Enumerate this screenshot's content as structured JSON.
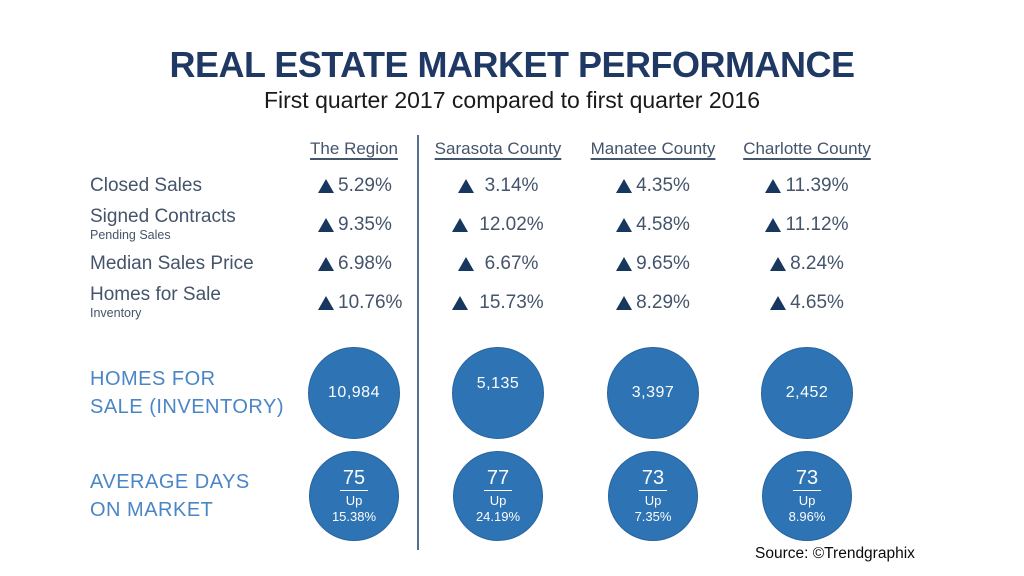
{
  "title": "REAL ESTATE MARKET PERFORMANCE",
  "subtitle": "First quarter 2017 compared to first quarter 2016",
  "table": {
    "columns": [
      "The Region",
      "Sarasota County",
      "Manatee County",
      "Charlotte County"
    ],
    "rows": [
      {
        "label": "Closed Sales",
        "sublabel": "",
        "values": [
          "5.29%",
          "3.14%",
          "4.35%",
          "11.39%"
        ]
      },
      {
        "label": "Signed Contracts",
        "sublabel": "Pending Sales",
        "values": [
          "9.35%",
          "12.02%",
          "4.58%",
          "11.12%"
        ]
      },
      {
        "label": "Median Sales Price",
        "sublabel": "",
        "values": [
          "6.98%",
          "6.67%",
          "9.65%",
          "8.24%"
        ]
      },
      {
        "label": "Homes for Sale",
        "sublabel": "Inventory",
        "values": [
          "10.76%",
          "15.73%",
          "8.29%",
          "4.65%"
        ]
      }
    ]
  },
  "inventory": {
    "label_lines": [
      "HOMES FOR",
      "SALE (INVENTORY)"
    ],
    "values": [
      "10,984",
      "5,135",
      "3,397",
      "2,452"
    ]
  },
  "days_on_market": {
    "label_lines": [
      "AVERAGE DAYS",
      "ON MARKET"
    ],
    "circles": [
      {
        "value": "75",
        "direction": "Up",
        "change": "15.38%"
      },
      {
        "value": "77",
        "direction": "Up",
        "change": "24.19%"
      },
      {
        "value": "73",
        "direction": "Up",
        "change": "7.35%"
      },
      {
        "value": "73",
        "direction": "Up",
        "change": "8.96%"
      }
    ]
  },
  "source": "Source: ©Trendgraphix",
  "colors": {
    "title_navy": "#1f3864",
    "slate_text": "#44546a",
    "triangle_navy": "#17375e",
    "circle_blue": "#2e74b5",
    "light_blue_label": "#4a86c5",
    "divider": "#54708e"
  },
  "chart_data": {
    "type": "table",
    "title": "REAL ESTATE MARKET PERFORMANCE",
    "subtitle": "First quarter 2017 compared to first quarter 2016",
    "columns": [
      "The Region",
      "Sarasota County",
      "Manatee County",
      "Charlotte County"
    ],
    "rows": [
      {
        "metric": "Closed Sales",
        "note": "",
        "direction": "up",
        "values_pct": [
          5.29,
          3.14,
          4.35,
          11.39
        ]
      },
      {
        "metric": "Signed Contracts",
        "note": "Pending Sales",
        "direction": "up",
        "values_pct": [
          9.35,
          12.02,
          4.58,
          11.12
        ]
      },
      {
        "metric": "Median Sales Price",
        "note": "",
        "direction": "up",
        "values_pct": [
          6.98,
          6.67,
          9.65,
          8.24
        ]
      },
      {
        "metric": "Homes for Sale",
        "note": "Inventory",
        "direction": "up",
        "values_pct": [
          10.76,
          15.73,
          8.29,
          4.65
        ]
      }
    ],
    "homes_for_sale_inventory": [
      10984,
      5135,
      3397,
      2452
    ],
    "average_days_on_market": [
      {
        "days": 75,
        "direction": "Up",
        "change_pct": 15.38
      },
      {
        "days": 77,
        "direction": "Up",
        "change_pct": 24.19
      },
      {
        "days": 73,
        "direction": "Up",
        "change_pct": 7.35
      },
      {
        "days": 73,
        "direction": "Up",
        "change_pct": 8.96
      }
    ],
    "legend_position": "none",
    "grid": false,
    "source": "Source: ©Trendgraphix"
  }
}
